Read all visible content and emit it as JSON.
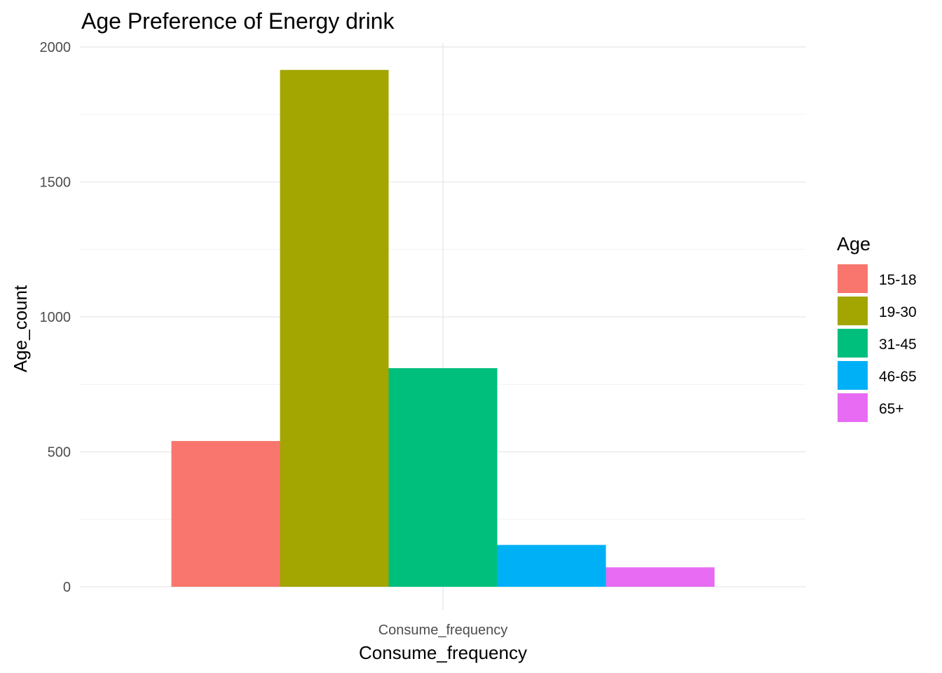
{
  "chart_data": {
    "type": "bar",
    "title": "Age Preference of Energy drink",
    "xlabel": "Consume_frequency",
    "ylabel": "Age_count",
    "categories": [
      "Consume_frequency"
    ],
    "series": [
      {
        "name": "15-18",
        "values": [
          540
        ],
        "color": "#F8766D"
      },
      {
        "name": "19-30",
        "values": [
          1915
        ],
        "color": "#A3A500"
      },
      {
        "name": "31-45",
        "values": [
          810
        ],
        "color": "#00BF7D"
      },
      {
        "name": "46-65",
        "values": [
          155
        ],
        "color": "#00B0F6"
      },
      {
        "name": "65+",
        "values": [
          72
        ],
        "color": "#E76BF3"
      }
    ],
    "ylim": [
      0,
      2000
    ],
    "yticks": [
      0,
      500,
      1000,
      1500,
      2000
    ],
    "grid": true,
    "legend": {
      "title": "Age",
      "position": "right"
    }
  }
}
